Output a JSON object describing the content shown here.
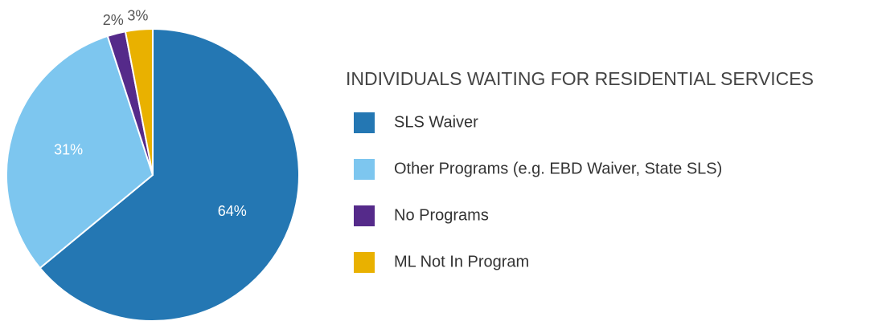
{
  "chart_data": {
    "type": "pie",
    "legend_title": "INDIVIDUALS WAITING FOR RESIDENTIAL SERVICES",
    "categories": [
      "SLS Waiver",
      "Other Programs (e.g. EBD Waiver, State SLS)",
      "No Programs",
      "ML Not In Program"
    ],
    "values": [
      64,
      31,
      2,
      3
    ],
    "value_labels": [
      "64%",
      "31%",
      "2%",
      "3%"
    ],
    "colors": [
      "#2477b3",
      "#7dc6ef",
      "#552a8a",
      "#e9b100"
    ],
    "legend": "right"
  }
}
